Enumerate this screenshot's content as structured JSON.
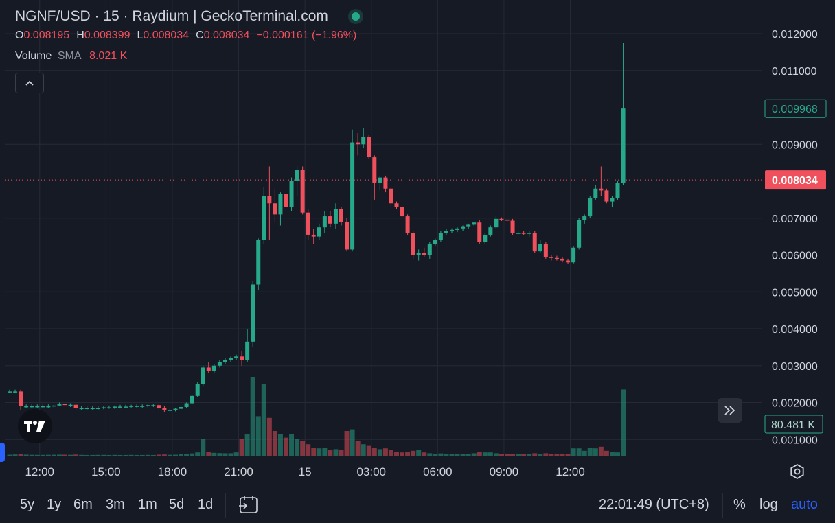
{
  "header": {
    "symbol": "NGNF/USD",
    "sep1": " · ",
    "interval": "15",
    "sep2": " · ",
    "exchange": "Raydium",
    "sep3": " | ",
    "source": "GeckoTerminal.com",
    "live_color": "#26a98b"
  },
  "ohlc": {
    "o_label": "O",
    "o_value": "0.008195",
    "h_label": "H",
    "h_value": "0.008399",
    "l_label": "L",
    "l_value": "0.008034",
    "c_label": "C",
    "c_value": "0.008034",
    "change": "−0.000161 (−1.96%)"
  },
  "volume_legend": {
    "label": "Volume",
    "sma_label": "SMA",
    "sma_value": "8.021 K"
  },
  "collapse_icon": "chevron-up-icon",
  "scroll_icon": "double-chevron-right-icon",
  "logo_icon": "tradingview-logo",
  "bottom": {
    "ranges": [
      "5y",
      "1y",
      "6m",
      "3m",
      "1m",
      "5d",
      "1d"
    ],
    "clock": "22:01:49 (UTC+8)",
    "percent": "%",
    "log": "log",
    "auto": "auto"
  },
  "colors": {
    "up": "#26a98b",
    "down": "#f0505c",
    "background": "#161a25",
    "grid": "#252a36",
    "accent": "#2962ff"
  },
  "chart_data": {
    "type": "candlestick",
    "interval_minutes": 15,
    "y_ticks": [
      "0.012000",
      "0.011000",
      "0.009000",
      "0.007000",
      "0.006000",
      "0.005000",
      "0.004000",
      "0.003000",
      "0.002000",
      "0.001000"
    ],
    "y_range": [
      0.0004,
      0.0124
    ],
    "x_ticks": [
      "12:00",
      "15:00",
      "18:00",
      "21:00",
      "15",
      "03:00",
      "06:00",
      "09:00",
      "12:00"
    ],
    "last_price_label": "0.008034",
    "current_price_label": "0.009968",
    "volume_label": "80.481 K",
    "last_price": 0.008034,
    "current_price": 0.009968,
    "volume_scale_max": 100000,
    "candles": [
      {
        "o": 0.0023,
        "h": 0.00235,
        "l": 0.00225,
        "c": 0.0023,
        "v": 1200
      },
      {
        "o": 0.0023,
        "h": 0.00235,
        "l": 0.00225,
        "c": 0.0023,
        "v": 1500
      },
      {
        "o": 0.0023,
        "h": 0.00235,
        "l": 0.0018,
        "c": 0.0019,
        "v": 2000
      },
      {
        "o": 0.0019,
        "h": 0.00195,
        "l": 0.00185,
        "c": 0.0019,
        "v": 1300
      },
      {
        "o": 0.0019,
        "h": 0.00195,
        "l": 0.00185,
        "c": 0.0019,
        "v": 1100
      },
      {
        "o": 0.0019,
        "h": 0.00195,
        "l": 0.00185,
        "c": 0.0019,
        "v": 1000
      },
      {
        "o": 0.0019,
        "h": 0.00195,
        "l": 0.00185,
        "c": 0.0019,
        "v": 1000
      },
      {
        "o": 0.0019,
        "h": 0.00195,
        "l": 0.00185,
        "c": 0.0019,
        "v": 1100
      },
      {
        "o": 0.0019,
        "h": 0.00197,
        "l": 0.00185,
        "c": 0.00192,
        "v": 1200
      },
      {
        "o": 0.00192,
        "h": 0.002,
        "l": 0.0019,
        "c": 0.00196,
        "v": 1300
      },
      {
        "o": 0.00196,
        "h": 0.002,
        "l": 0.0019,
        "c": 0.00194,
        "v": 1200
      },
      {
        "o": 0.00194,
        "h": 0.00198,
        "l": 0.00188,
        "c": 0.00194,
        "v": 1100
      },
      {
        "o": 0.00194,
        "h": 0.00198,
        "l": 0.0018,
        "c": 0.00185,
        "v": 1400
      },
      {
        "o": 0.00185,
        "h": 0.0019,
        "l": 0.0018,
        "c": 0.00185,
        "v": 1000
      },
      {
        "o": 0.00185,
        "h": 0.0019,
        "l": 0.0018,
        "c": 0.00185,
        "v": 900
      },
      {
        "o": 0.00185,
        "h": 0.0019,
        "l": 0.0018,
        "c": 0.00185,
        "v": 900
      },
      {
        "o": 0.00185,
        "h": 0.0019,
        "l": 0.0018,
        "c": 0.00185,
        "v": 1000
      },
      {
        "o": 0.00185,
        "h": 0.0019,
        "l": 0.00182,
        "c": 0.00187,
        "v": 1000
      },
      {
        "o": 0.00187,
        "h": 0.00192,
        "l": 0.00183,
        "c": 0.00187,
        "v": 900
      },
      {
        "o": 0.00187,
        "h": 0.00192,
        "l": 0.00183,
        "c": 0.00189,
        "v": 1000
      },
      {
        "o": 0.00189,
        "h": 0.00194,
        "l": 0.00184,
        "c": 0.00189,
        "v": 900
      },
      {
        "o": 0.00189,
        "h": 0.00194,
        "l": 0.00185,
        "c": 0.00189,
        "v": 900
      },
      {
        "o": 0.00189,
        "h": 0.00194,
        "l": 0.00185,
        "c": 0.00191,
        "v": 1000
      },
      {
        "o": 0.00191,
        "h": 0.00195,
        "l": 0.00186,
        "c": 0.00191,
        "v": 900
      },
      {
        "o": 0.00191,
        "h": 0.00195,
        "l": 0.00186,
        "c": 0.00191,
        "v": 900
      },
      {
        "o": 0.00191,
        "h": 0.00196,
        "l": 0.00187,
        "c": 0.00193,
        "v": 1000
      },
      {
        "o": 0.00193,
        "h": 0.00197,
        "l": 0.00188,
        "c": 0.00193,
        "v": 900
      },
      {
        "o": 0.00193,
        "h": 0.00197,
        "l": 0.00182,
        "c": 0.00185,
        "v": 1300
      },
      {
        "o": 0.00185,
        "h": 0.0019,
        "l": 0.00175,
        "c": 0.0018,
        "v": 1500
      },
      {
        "o": 0.0018,
        "h": 0.00185,
        "l": 0.00175,
        "c": 0.0018,
        "v": 1100
      },
      {
        "o": 0.0018,
        "h": 0.00186,
        "l": 0.00176,
        "c": 0.00183,
        "v": 1200
      },
      {
        "o": 0.00183,
        "h": 0.0019,
        "l": 0.0018,
        "c": 0.00188,
        "v": 1700
      },
      {
        "o": 0.00188,
        "h": 0.002,
        "l": 0.00185,
        "c": 0.00198,
        "v": 2200
      },
      {
        "o": 0.00198,
        "h": 0.0022,
        "l": 0.00195,
        "c": 0.00218,
        "v": 2800
      },
      {
        "o": 0.00218,
        "h": 0.00255,
        "l": 0.00215,
        "c": 0.0025,
        "v": 4000
      },
      {
        "o": 0.0025,
        "h": 0.003,
        "l": 0.00245,
        "c": 0.00295,
        "v": 20000
      },
      {
        "o": 0.00295,
        "h": 0.0031,
        "l": 0.0028,
        "c": 0.00285,
        "v": 5000
      },
      {
        "o": 0.00285,
        "h": 0.00305,
        "l": 0.0028,
        "c": 0.003,
        "v": 3500
      },
      {
        "o": 0.003,
        "h": 0.00315,
        "l": 0.00295,
        "c": 0.0031,
        "v": 3200
      },
      {
        "o": 0.0031,
        "h": 0.0032,
        "l": 0.00305,
        "c": 0.00315,
        "v": 3000
      },
      {
        "o": 0.00315,
        "h": 0.00325,
        "l": 0.0031,
        "c": 0.0032,
        "v": 3000
      },
      {
        "o": 0.0032,
        "h": 0.0033,
        "l": 0.00315,
        "c": 0.00325,
        "v": 4000
      },
      {
        "o": 0.00325,
        "h": 0.0034,
        "l": 0.003,
        "c": 0.00315,
        "v": 20000
      },
      {
        "o": 0.00315,
        "h": 0.004,
        "l": 0.0031,
        "c": 0.00365,
        "v": 26000
      },
      {
        "o": 0.00365,
        "h": 0.0053,
        "l": 0.0035,
        "c": 0.0052,
        "v": 95000
      },
      {
        "o": 0.0052,
        "h": 0.00645,
        "l": 0.00505,
        "c": 0.0064,
        "v": 48000
      },
      {
        "o": 0.0064,
        "h": 0.00785,
        "l": 0.0063,
        "c": 0.0076,
        "v": 87000
      },
      {
        "o": 0.0076,
        "h": 0.0084,
        "l": 0.0064,
        "c": 0.0074,
        "v": 46000
      },
      {
        "o": 0.0074,
        "h": 0.0078,
        "l": 0.0069,
        "c": 0.0071,
        "v": 30000
      },
      {
        "o": 0.0071,
        "h": 0.0077,
        "l": 0.0068,
        "c": 0.00765,
        "v": 26000
      },
      {
        "o": 0.00765,
        "h": 0.0078,
        "l": 0.0071,
        "c": 0.0073,
        "v": 22000
      },
      {
        "o": 0.0073,
        "h": 0.0081,
        "l": 0.0072,
        "c": 0.008,
        "v": 26000
      },
      {
        "o": 0.008,
        "h": 0.0084,
        "l": 0.0076,
        "c": 0.0083,
        "v": 20000
      },
      {
        "o": 0.0083,
        "h": 0.0084,
        "l": 0.0071,
        "c": 0.00715,
        "v": 18000
      },
      {
        "o": 0.00715,
        "h": 0.00725,
        "l": 0.0064,
        "c": 0.00655,
        "v": 14000
      },
      {
        "o": 0.00655,
        "h": 0.0067,
        "l": 0.0063,
        "c": 0.0065,
        "v": 10000
      },
      {
        "o": 0.0065,
        "h": 0.00685,
        "l": 0.0064,
        "c": 0.00675,
        "v": 9000
      },
      {
        "o": 0.00675,
        "h": 0.0072,
        "l": 0.0066,
        "c": 0.00705,
        "v": 10000
      },
      {
        "o": 0.00705,
        "h": 0.0072,
        "l": 0.00675,
        "c": 0.00685,
        "v": 7000
      },
      {
        "o": 0.00685,
        "h": 0.0074,
        "l": 0.0067,
        "c": 0.00725,
        "v": 8000
      },
      {
        "o": 0.00725,
        "h": 0.0073,
        "l": 0.0068,
        "c": 0.0069,
        "v": 7000
      },
      {
        "o": 0.0069,
        "h": 0.007,
        "l": 0.0061,
        "c": 0.00615,
        "v": 30000
      },
      {
        "o": 0.00615,
        "h": 0.0094,
        "l": 0.0061,
        "c": 0.00905,
        "v": 32000
      },
      {
        "o": 0.00905,
        "h": 0.0093,
        "l": 0.0087,
        "c": 0.009,
        "v": 18000
      },
      {
        "o": 0.009,
        "h": 0.00945,
        "l": 0.0089,
        "c": 0.0092,
        "v": 14000
      },
      {
        "o": 0.0092,
        "h": 0.00925,
        "l": 0.0086,
        "c": 0.00865,
        "v": 12000
      },
      {
        "o": 0.00865,
        "h": 0.0087,
        "l": 0.0075,
        "c": 0.00795,
        "v": 10000
      },
      {
        "o": 0.00795,
        "h": 0.00815,
        "l": 0.00775,
        "c": 0.0081,
        "v": 8000
      },
      {
        "o": 0.0081,
        "h": 0.00815,
        "l": 0.0077,
        "c": 0.0078,
        "v": 9000
      },
      {
        "o": 0.0078,
        "h": 0.00785,
        "l": 0.0073,
        "c": 0.0074,
        "v": 7000
      },
      {
        "o": 0.0074,
        "h": 0.00745,
        "l": 0.00725,
        "c": 0.0073,
        "v": 5000
      },
      {
        "o": 0.0073,
        "h": 0.00735,
        "l": 0.007,
        "c": 0.00705,
        "v": 4000
      },
      {
        "o": 0.00705,
        "h": 0.0071,
        "l": 0.00655,
        "c": 0.0066,
        "v": 5000
      },
      {
        "o": 0.0066,
        "h": 0.00665,
        "l": 0.0059,
        "c": 0.006,
        "v": 6000
      },
      {
        "o": 0.006,
        "h": 0.00615,
        "l": 0.00585,
        "c": 0.00605,
        "v": 7000
      },
      {
        "o": 0.00605,
        "h": 0.0062,
        "l": 0.00595,
        "c": 0.006,
        "v": 4000
      },
      {
        "o": 0.006,
        "h": 0.00635,
        "l": 0.0059,
        "c": 0.0063,
        "v": 3000
      },
      {
        "o": 0.0063,
        "h": 0.00645,
        "l": 0.00625,
        "c": 0.0064,
        "v": 2500
      },
      {
        "o": 0.0064,
        "h": 0.00665,
        "l": 0.00635,
        "c": 0.0066,
        "v": 2800
      },
      {
        "o": 0.0066,
        "h": 0.0067,
        "l": 0.00655,
        "c": 0.00665,
        "v": 2200
      },
      {
        "o": 0.00665,
        "h": 0.00672,
        "l": 0.0066,
        "c": 0.00668,
        "v": 2000
      },
      {
        "o": 0.00668,
        "h": 0.00675,
        "l": 0.00662,
        "c": 0.00672,
        "v": 2000
      },
      {
        "o": 0.00672,
        "h": 0.0068,
        "l": 0.00665,
        "c": 0.00676,
        "v": 2300
      },
      {
        "o": 0.00676,
        "h": 0.00685,
        "l": 0.0067,
        "c": 0.00682,
        "v": 2500
      },
      {
        "o": 0.00682,
        "h": 0.0069,
        "l": 0.00678,
        "c": 0.00688,
        "v": 3000
      },
      {
        "o": 0.00688,
        "h": 0.00695,
        "l": 0.0063,
        "c": 0.00635,
        "v": 5000
      },
      {
        "o": 0.00635,
        "h": 0.0066,
        "l": 0.0063,
        "c": 0.00655,
        "v": 4000
      },
      {
        "o": 0.00655,
        "h": 0.0068,
        "l": 0.0065,
        "c": 0.00675,
        "v": 4000
      },
      {
        "o": 0.00675,
        "h": 0.00705,
        "l": 0.0067,
        "c": 0.00698,
        "v": 3000
      },
      {
        "o": 0.00698,
        "h": 0.00702,
        "l": 0.00692,
        "c": 0.00696,
        "v": 2500
      },
      {
        "o": 0.00696,
        "h": 0.007,
        "l": 0.0069,
        "c": 0.00693,
        "v": 2000
      },
      {
        "o": 0.00693,
        "h": 0.00698,
        "l": 0.00655,
        "c": 0.0066,
        "v": 2000
      },
      {
        "o": 0.0066,
        "h": 0.00665,
        "l": 0.00655,
        "c": 0.0066,
        "v": 1800
      },
      {
        "o": 0.0066,
        "h": 0.00665,
        "l": 0.00655,
        "c": 0.00658,
        "v": 1700
      },
      {
        "o": 0.00658,
        "h": 0.00665,
        "l": 0.0065,
        "c": 0.0066,
        "v": 1800
      },
      {
        "o": 0.0066,
        "h": 0.00665,
        "l": 0.00605,
        "c": 0.0061,
        "v": 3000
      },
      {
        "o": 0.0061,
        "h": 0.0064,
        "l": 0.00605,
        "c": 0.0063,
        "v": 2500
      },
      {
        "o": 0.0063,
        "h": 0.00635,
        "l": 0.0059,
        "c": 0.00595,
        "v": 3000
      },
      {
        "o": 0.00595,
        "h": 0.006,
        "l": 0.00585,
        "c": 0.00592,
        "v": 1800
      },
      {
        "o": 0.00592,
        "h": 0.00598,
        "l": 0.00585,
        "c": 0.0059,
        "v": 1700
      },
      {
        "o": 0.0059,
        "h": 0.00595,
        "l": 0.0058,
        "c": 0.00585,
        "v": 1800
      },
      {
        "o": 0.00585,
        "h": 0.0059,
        "l": 0.00575,
        "c": 0.0058,
        "v": 2500
      },
      {
        "o": 0.0058,
        "h": 0.00625,
        "l": 0.00575,
        "c": 0.0062,
        "v": 9000
      },
      {
        "o": 0.0062,
        "h": 0.007,
        "l": 0.00615,
        "c": 0.00695,
        "v": 9000
      },
      {
        "o": 0.00695,
        "h": 0.0071,
        "l": 0.00685,
        "c": 0.00705,
        "v": 6000
      },
      {
        "o": 0.00705,
        "h": 0.0076,
        "l": 0.007,
        "c": 0.00755,
        "v": 10000
      },
      {
        "o": 0.00755,
        "h": 0.0079,
        "l": 0.0075,
        "c": 0.0078,
        "v": 9000
      },
      {
        "o": 0.0078,
        "h": 0.0084,
        "l": 0.0076,
        "c": 0.00775,
        "v": 11000
      },
      {
        "o": 0.00775,
        "h": 0.0078,
        "l": 0.0074,
        "c": 0.00745,
        "v": 6000
      },
      {
        "o": 0.00745,
        "h": 0.0076,
        "l": 0.0073,
        "c": 0.00755,
        "v": 5000
      },
      {
        "o": 0.00755,
        "h": 0.008,
        "l": 0.0075,
        "c": 0.00795,
        "v": 4000
      },
      {
        "o": 0.00795,
        "h": 0.01175,
        "l": 0.0079,
        "c": 0.00997,
        "v": 80481
      }
    ]
  }
}
